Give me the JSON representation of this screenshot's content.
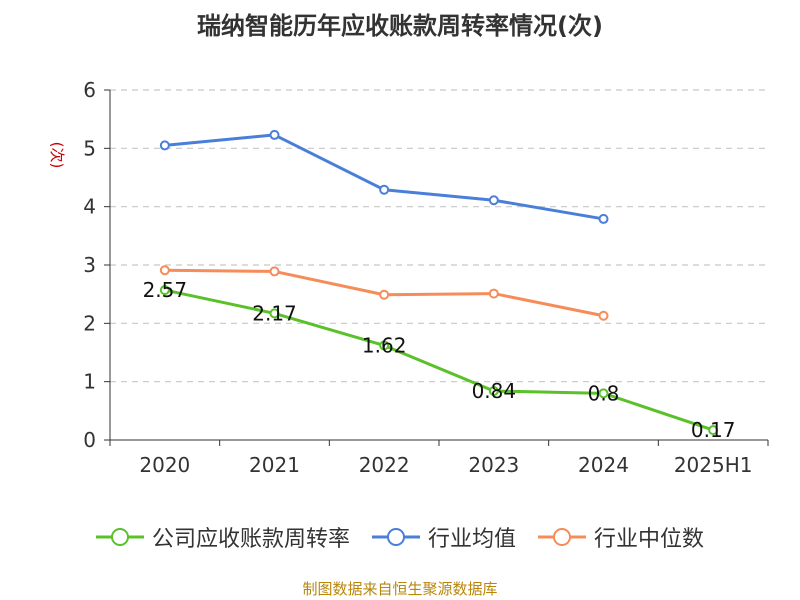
{
  "page": {
    "title": "瑞纳智能历年应收账款周转率情况(次)",
    "source": "制图数据来自恒生聚源数据库"
  },
  "colors": {
    "background": "#ffffff",
    "grid": "#c8c8c8",
    "axis": "#333333",
    "ylabel": "#cc0000",
    "source": "#b8860b"
  },
  "chart_data": {
    "type": "line",
    "title": "瑞纳智能历年应收账款周转率情况(次)",
    "xlabel": "",
    "ylabel": "(次)",
    "ylim": [
      0,
      6
    ],
    "yticks": [
      "0",
      "1",
      "2",
      "3",
      "4",
      "5",
      "6"
    ],
    "categories": [
      "2020",
      "2021",
      "2022",
      "2023",
      "2024",
      "2025H1"
    ],
    "grid": true,
    "legend_position": "bottom",
    "series": [
      {
        "name": "公司应收账款周转率",
        "color": "#5ac12a",
        "values": [
          2.57,
          2.17,
          1.62,
          0.84,
          0.8,
          0.17
        ],
        "labels": [
          "2.57",
          "2.17",
          "1.62",
          "0.84",
          "0.8",
          "0.17"
        ],
        "show_labels": true
      },
      {
        "name": "行业均值",
        "color": "#4a7fd9",
        "values": [
          5.05,
          5.23,
          4.29,
          4.11,
          3.79,
          null
        ],
        "show_labels": false
      },
      {
        "name": "行业中位数",
        "color": "#f58c5a",
        "values": [
          2.91,
          2.89,
          2.49,
          2.51,
          2.13,
          null
        ],
        "show_labels": false
      }
    ]
  }
}
